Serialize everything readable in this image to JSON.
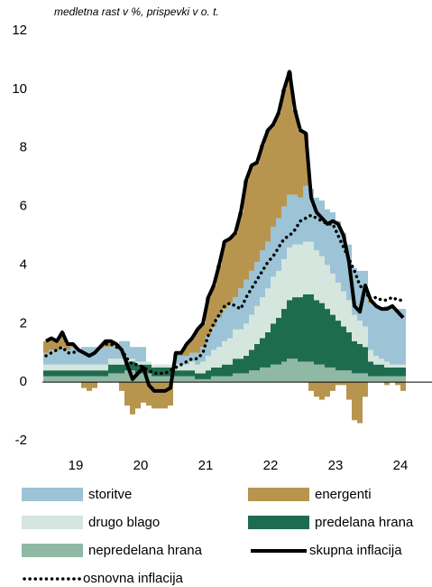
{
  "chart_data": {
    "type": "bar",
    "subtitle": "medletna rast v %, prispevki v o. t.",
    "stacked": true,
    "categories": [
      null,
      null,
      null,
      null,
      null,
      null,
      "19",
      null,
      null,
      null,
      null,
      null,
      null,
      null,
      null,
      null,
      null,
      null,
      "20",
      null,
      null,
      null,
      null,
      null,
      null,
      null,
      null,
      null,
      null,
      null,
      "21",
      null,
      null,
      null,
      null,
      null,
      null,
      null,
      null,
      null,
      null,
      null,
      "22",
      null,
      null,
      null,
      null,
      null,
      null,
      null,
      null,
      null,
      null,
      null,
      "23",
      null,
      null,
      null,
      null,
      null,
      null,
      null,
      null,
      null,
      null,
      null,
      "24"
    ],
    "ylim": [
      -2,
      12
    ],
    "yticks": [
      -2,
      0,
      2,
      4,
      6,
      8,
      10,
      12
    ],
    "series": [
      {
        "name": "storitve",
        "type": "bar",
        "color": "#9dc3d6",
        "values": [
          0.4,
          0.5,
          0.5,
          0.6,
          0.5,
          0.6,
          0.5,
          0.6,
          0.6,
          0.6,
          0.6,
          0.6,
          0.4,
          0.5,
          0.6,
          0.6,
          0.4,
          0.5,
          0.5,
          0.0,
          0.0,
          0.0,
          0.0,
          0.0,
          0.4,
          0.3,
          0.3,
          0.3,
          0.4,
          0.5,
          0.7,
          0.8,
          1.0,
          1.1,
          1.2,
          1.1,
          1.4,
          1.5,
          1.5,
          1.5,
          1.6,
          1.6,
          1.7,
          1.8,
          1.8,
          1.8,
          1.7,
          1.6,
          1.9,
          1.8,
          1.8,
          1.9,
          1.9,
          2.1,
          2.1,
          2.0,
          1.9,
          1.6,
          1.7,
          1.9,
          1.6,
          1.7,
          1.7,
          1.9,
          2.0,
          1.9,
          1.9
        ]
      },
      {
        "name": "energenti",
        "type": "bar",
        "color": "#b8954f",
        "values": [
          0.4,
          0.4,
          0.3,
          0.5,
          0.2,
          0.1,
          0.0,
          -0.2,
          -0.3,
          -0.2,
          0.0,
          0.2,
          0.2,
          0.0,
          -0.3,
          -0.8,
          -1.1,
          -0.9,
          -0.7,
          -0.8,
          -0.9,
          -0.9,
          -0.9,
          -0.8,
          0.0,
          0.1,
          0.4,
          0.5,
          0.8,
          0.8,
          1.3,
          1.4,
          1.8,
          2.3,
          2.2,
          2.2,
          2.6,
          3.4,
          3.6,
          3.4,
          3.6,
          3.8,
          3.5,
          3.6,
          4.0,
          4.2,
          2.9,
          2.3,
          1.8,
          -0.3,
          -0.5,
          -0.6,
          -0.5,
          -0.3,
          -0.1,
          -0.1,
          -0.6,
          -1.3,
          -1.4,
          -0.5,
          0.1,
          0.0,
          0.0,
          -0.1,
          0.0,
          -0.1,
          -0.3
        ]
      },
      {
        "name": "drugo blago",
        "type": "bar",
        "color": "#d4e6dd",
        "values": [
          0.2,
          0.2,
          0.2,
          0.2,
          0.2,
          0.2,
          0.2,
          0.2,
          0.2,
          0.2,
          0.2,
          0.2,
          0.2,
          0.2,
          0.2,
          0.1,
          0.1,
          0.1,
          0.1,
          0.1,
          0.1,
          0.1,
          0.1,
          0.1,
          0.2,
          0.2,
          0.2,
          0.3,
          0.3,
          0.4,
          0.5,
          0.6,
          0.7,
          0.8,
          0.9,
          1.0,
          1.0,
          1.1,
          1.2,
          1.3,
          1.4,
          1.5,
          1.6,
          1.6,
          1.7,
          1.8,
          1.8,
          1.8,
          1.8,
          1.8,
          1.7,
          1.6,
          1.5,
          1.4,
          1.3,
          1.2,
          1.1,
          0.9,
          0.8,
          0.7,
          0.4,
          0.3,
          0.2,
          0.2,
          0.1,
          0.1,
          0.1
        ]
      },
      {
        "name": "predelana hrana",
        "type": "bar",
        "color": "#1e6c4f",
        "values": [
          0.2,
          0.2,
          0.2,
          0.2,
          0.2,
          0.2,
          0.2,
          0.2,
          0.2,
          0.2,
          0.2,
          0.2,
          0.3,
          0.3,
          0.3,
          0.3,
          0.3,
          0.3,
          0.3,
          0.3,
          0.3,
          0.3,
          0.3,
          0.3,
          0.2,
          0.2,
          0.2,
          0.2,
          0.2,
          0.2,
          0.3,
          0.3,
          0.3,
          0.4,
          0.4,
          0.5,
          0.5,
          0.6,
          0.7,
          0.9,
          1.0,
          1.2,
          1.4,
          1.6,
          1.8,
          2.0,
          2.1,
          2.2,
          2.3,
          2.3,
          2.2,
          2.1,
          2.0,
          1.8,
          1.7,
          1.5,
          1.3,
          1.1,
          1.0,
          0.9,
          0.5,
          0.4,
          0.4,
          0.3,
          0.3,
          0.3,
          0.3
        ]
      },
      {
        "name": "nepredelana hrana",
        "type": "bar",
        "color": "#8fb8a5",
        "values": [
          0.2,
          0.2,
          0.2,
          0.2,
          0.2,
          0.2,
          0.2,
          0.2,
          0.2,
          0.2,
          0.2,
          0.2,
          0.3,
          0.3,
          0.3,
          0.4,
          0.4,
          0.3,
          0.3,
          0.3,
          0.2,
          0.2,
          0.2,
          0.2,
          0.2,
          0.2,
          0.2,
          0.2,
          0.1,
          0.1,
          0.1,
          0.2,
          0.2,
          0.2,
          0.2,
          0.3,
          0.3,
          0.3,
          0.4,
          0.4,
          0.5,
          0.5,
          0.6,
          0.6,
          0.7,
          0.8,
          0.8,
          0.7,
          0.7,
          0.7,
          0.6,
          0.6,
          0.5,
          0.5,
          0.4,
          0.4,
          0.4,
          0.3,
          0.3,
          0.3,
          0.2,
          0.2,
          0.2,
          0.2,
          0.2,
          0.2,
          0.2
        ]
      },
      {
        "name": "skupna inflacija",
        "type": "line",
        "color": "#000000",
        "dotted": false,
        "values": [
          1.4,
          1.5,
          1.4,
          1.7,
          1.3,
          1.3,
          1.1,
          1.0,
          0.9,
          1.0,
          1.2,
          1.4,
          1.4,
          1.3,
          1.1,
          0.6,
          0.1,
          0.3,
          0.5,
          -0.1,
          -0.3,
          -0.3,
          -0.3,
          -0.2,
          1.0,
          1.0,
          1.3,
          1.5,
          1.8,
          2.0,
          2.9,
          3.3,
          4.0,
          4.8,
          4.9,
          5.1,
          5.8,
          6.9,
          7.4,
          7.5,
          8.1,
          8.6,
          8.8,
          9.2,
          10.0,
          10.6,
          9.3,
          8.6,
          8.5,
          6.3,
          5.8,
          5.6,
          5.4,
          5.5,
          5.4,
          5.0,
          4.1,
          2.6,
          2.4,
          3.3,
          2.8,
          2.6,
          2.5,
          2.5,
          2.6,
          2.4,
          2.2
        ]
      },
      {
        "name": "osnovna inflacija",
        "type": "line",
        "color": "#000000",
        "dotted": true,
        "values": [
          0.9,
          1.0,
          1.1,
          1.2,
          1.0,
          1.0,
          1.1,
          1.0,
          0.9,
          1.0,
          1.2,
          1.3,
          1.3,
          1.2,
          1.1,
          0.8,
          0.6,
          0.6,
          0.5,
          0.4,
          0.3,
          0.3,
          0.3,
          0.4,
          0.5,
          0.6,
          0.7,
          0.8,
          0.8,
          1.0,
          1.6,
          2.0,
          2.3,
          2.6,
          2.7,
          2.6,
          2.5,
          2.9,
          3.2,
          3.5,
          3.8,
          4.1,
          4.3,
          4.6,
          4.9,
          5.0,
          5.2,
          5.5,
          5.6,
          5.7,
          5.6,
          5.5,
          5.4,
          5.4,
          5.0,
          4.6,
          4.2,
          3.8,
          3.3,
          3.1,
          2.8,
          2.9,
          2.8,
          2.8,
          2.9,
          2.8,
          2.8
        ]
      }
    ]
  }
}
